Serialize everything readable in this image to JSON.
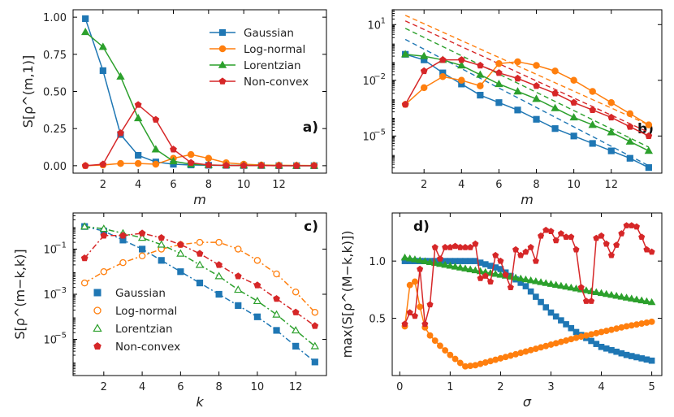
{
  "colors": {
    "gaussian": "#1f77b4",
    "lognormal": "#ff7f0e",
    "lorentzian": "#2ca02c",
    "nonconvex": "#d62728"
  },
  "chart_data": [
    {
      "id": "a",
      "panel_label": "a)",
      "type": "line",
      "yscale": "linear",
      "xlabel": "m",
      "ylabel": "S[ρ^(m,1)]",
      "xlim": [
        0.3,
        14.7
      ],
      "ylim": [
        -0.05,
        1.05
      ],
      "xticks": [
        2,
        4,
        6,
        8,
        10,
        12
      ],
      "yticks": [
        0,
        0.25,
        0.5,
        0.75,
        1.0
      ],
      "ytick_labels": [
        "0.00",
        "0.25",
        "0.50",
        "0.75",
        "1.00"
      ],
      "legend": [
        "Gaussian",
        "Log-normal",
        "Lorentzian",
        "Non-convex"
      ],
      "x": [
        1,
        2,
        3,
        4,
        5,
        6,
        7,
        8,
        9,
        10,
        11,
        12,
        13,
        14
      ],
      "series": [
        {
          "name": "Gaussian",
          "key": "gaussian",
          "marker": "square",
          "values": [
            0.99,
            0.64,
            0.21,
            0.07,
            0.025,
            0.01,
            0.005,
            0.003,
            0.002,
            0.001,
            0.001,
            0,
            0,
            0
          ]
        },
        {
          "name": "Log-normal",
          "key": "lognormal",
          "marker": "circle",
          "values": [
            0.0,
            0.005,
            0.015,
            0.015,
            0.01,
            0.05,
            0.075,
            0.05,
            0.02,
            0.01,
            0.005,
            0.003,
            0.002,
            0.001
          ]
        },
        {
          "name": "Lorentzian",
          "key": "lorentzian",
          "marker": "triangle",
          "values": [
            0.9,
            0.8,
            0.6,
            0.32,
            0.11,
            0.03,
            0.01,
            0.005,
            0.003,
            0.002,
            0.001,
            0.001,
            0,
            0
          ]
        },
        {
          "name": "Non-convex",
          "key": "nonconvex",
          "marker": "pentagon",
          "values": [
            0.0,
            0.01,
            0.22,
            0.41,
            0.31,
            0.11,
            0.02,
            0.005,
            0.002,
            0.001,
            0.001,
            0,
            0,
            0
          ]
        }
      ]
    },
    {
      "id": "b",
      "panel_label": "b)",
      "type": "line",
      "yscale": "log",
      "xlabel": "m",
      "ylabel": "",
      "xlim": [
        0.3,
        14.7
      ],
      "ylim_log10": [
        -7,
        1.8
      ],
      "xticks": [
        2,
        4,
        6,
        8,
        10,
        12
      ],
      "yticks_log10": [
        1,
        -2,
        -5
      ],
      "ytick_labels": [
        "10",
        "10",
        "10"
      ],
      "ytick_exponents": [
        "1",
        "−2",
        "−5"
      ],
      "x": [
        1,
        2,
        3,
        4,
        5,
        6,
        7,
        8,
        9,
        10,
        11,
        12,
        13,
        14
      ],
      "series": [
        {
          "name": "Gaussian",
          "key": "gaussian",
          "marker": "square",
          "log10_values": [
            -0.6,
            -0.9,
            -1.6,
            -2.2,
            -2.8,
            -3.2,
            -3.6,
            -4.1,
            -4.6,
            -5.0,
            -5.4,
            -5.8,
            -6.2,
            -6.7
          ]
        },
        {
          "name": "Log-normal",
          "key": "lognormal",
          "marker": "circle",
          "log10_values": [
            -3.3,
            -2.4,
            -1.8,
            -2.0,
            -2.3,
            -1.1,
            -1.0,
            -1.2,
            -1.5,
            -2.0,
            -2.6,
            -3.2,
            -3.8,
            -4.4
          ]
        },
        {
          "name": "Lorentzian",
          "key": "lorentzian",
          "marker": "triangle",
          "log10_values": [
            -0.6,
            -0.7,
            -0.9,
            -1.2,
            -1.7,
            -2.2,
            -2.6,
            -3.0,
            -3.5,
            -4.0,
            -4.4,
            -4.8,
            -5.3,
            -5.8
          ]
        },
        {
          "name": "Non-convex",
          "key": "nonconvex",
          "marker": "pentagon",
          "log10_values": [
            -3.3,
            -1.5,
            -0.9,
            -0.9,
            -1.2,
            -1.6,
            -1.9,
            -2.3,
            -2.7,
            -3.2,
            -3.6,
            -4.0,
            -4.5,
            -5.0
          ]
        }
      ],
      "asymptotes": [
        {
          "key": "gaussian",
          "log10_from": [
            1,
            0.2
          ],
          "log10_to": [
            14,
            -6.6
          ]
        },
        {
          "key": "lorentzian",
          "log10_from": [
            1,
            0.8
          ],
          "log10_to": [
            14,
            -5.6
          ]
        },
        {
          "key": "nonconvex",
          "log10_from": [
            1,
            1.2
          ],
          "log10_to": [
            14,
            -4.8
          ]
        },
        {
          "key": "lognormal",
          "log10_from": [
            1,
            1.5
          ],
          "log10_to": [
            14,
            -4.4
          ]
        }
      ]
    },
    {
      "id": "c",
      "panel_label": "c)",
      "type": "line",
      "yscale": "log",
      "line_style": "dash-dot",
      "xlabel": "k",
      "ylabel": "S[ρ^(m−k,k)]",
      "xlim": [
        0.4,
        13.6
      ],
      "ylim_log10": [
        -6.6,
        0.6
      ],
      "xticks": [
        2,
        4,
        6,
        8,
        10,
        12
      ],
      "yticks_log10": [
        -1,
        -3,
        -5
      ],
      "ytick_labels": [
        "10",
        "10",
        "10"
      ],
      "ytick_exponents": [
        "−1",
        "−3",
        "−5"
      ],
      "legend": [
        "Gaussian",
        "Log-normal",
        "Lorentzian",
        "Non-convex"
      ],
      "x": [
        1,
        2,
        3,
        4,
        5,
        6,
        7,
        8,
        9,
        10,
        11,
        12,
        13
      ],
      "series": [
        {
          "name": "Gaussian",
          "key": "gaussian",
          "marker": "square",
          "open": false,
          "log10_values": [
            0,
            -0.2,
            -0.6,
            -1.0,
            -1.5,
            -2.0,
            -2.5,
            -3.0,
            -3.5,
            -4.0,
            -4.6,
            -5.3,
            -6.0
          ]
        },
        {
          "name": "Log-normal",
          "key": "lognormal",
          "marker": "circle",
          "open": true,
          "log10_values": [
            -2.5,
            -2.0,
            -1.6,
            -1.3,
            -1.0,
            -0.8,
            -0.7,
            -0.7,
            -1.0,
            -1.5,
            -2.1,
            -2.9,
            -3.8
          ]
        },
        {
          "name": "Lorentzian",
          "key": "lorentzian",
          "marker": "triangle",
          "open": true,
          "log10_values": [
            0,
            -0.1,
            -0.3,
            -0.5,
            -0.8,
            -1.2,
            -1.7,
            -2.2,
            -2.8,
            -3.3,
            -3.9,
            -4.6,
            -5.3
          ]
        },
        {
          "name": "Non-convex",
          "key": "nonconvex",
          "marker": "pentagon",
          "open": false,
          "log10_values": [
            -1.4,
            -0.4,
            -0.4,
            -0.3,
            -0.5,
            -0.8,
            -1.2,
            -1.7,
            -2.2,
            -2.6,
            -3.2,
            -3.8,
            -4.4
          ]
        }
      ]
    },
    {
      "id": "d",
      "panel_label": "d)",
      "type": "line",
      "yscale": "linear",
      "xlabel": "σ",
      "ylabel": "max(S[ρ^(M−k,k)])",
      "xlim": [
        -0.15,
        5.2
      ],
      "ylim": [
        0.0,
        1.42
      ],
      "xticks": [
        0,
        1,
        2,
        3,
        4,
        5
      ],
      "yticks": [
        0.5,
        1.0
      ],
      "ytick_labels": [
        "0.5",
        "1.0"
      ],
      "series": [
        {
          "name": "Gaussian",
          "key": "gaussian",
          "marker": "square",
          "x_range": [
            0.1,
            5.0
          ],
          "count": 50,
          "anchors_x": [
            0.1,
            1.5,
            2.0,
            2.5,
            3.0,
            3.5,
            4.0,
            4.5,
            5.0
          ],
          "anchors_y": [
            1.0,
            1.0,
            0.93,
            0.78,
            0.55,
            0.38,
            0.25,
            0.18,
            0.13
          ]
        },
        {
          "name": "Log-normal",
          "key": "lognormal",
          "marker": "circle",
          "x_range": [
            0.1,
            5.0
          ],
          "count": 50,
          "anchors_x": [
            0.1,
            0.2,
            0.3,
            0.4,
            0.5,
            0.6,
            0.8,
            1.0,
            1.2,
            1.3,
            1.5,
            2.0,
            2.5,
            3.0,
            3.5,
            4.0,
            4.5,
            5.0
          ],
          "anchors_y": [
            0.43,
            0.79,
            0.82,
            0.6,
            0.42,
            0.35,
            0.26,
            0.18,
            0.11,
            0.08,
            0.09,
            0.15,
            0.21,
            0.27,
            0.33,
            0.38,
            0.43,
            0.47
          ]
        },
        {
          "name": "Lorentzian",
          "key": "lorentzian",
          "marker": "triangle",
          "x_range": [
            0.1,
            5.0
          ],
          "count": 50,
          "anchors_x": [
            0.1,
            5.0
          ],
          "anchors_y": [
            1.03,
            0.64
          ]
        },
        {
          "name": "Non-convex",
          "key": "nonconvex",
          "marker": "pentagon",
          "x": [
            0.1,
            0.2,
            0.3,
            0.4,
            0.5,
            0.6,
            0.7,
            0.8,
            0.9,
            1.0,
            1.1,
            1.2,
            1.3,
            1.4,
            1.5,
            1.6,
            1.7,
            1.8,
            1.9,
            2.0,
            2.1,
            2.2,
            2.3,
            2.4,
            2.5,
            2.6,
            2.7,
            2.8,
            2.9,
            3.0,
            3.1,
            3.2,
            3.3,
            3.4,
            3.5,
            3.6,
            3.7,
            3.8,
            3.9,
            4.0,
            4.1,
            4.2,
            4.3,
            4.4,
            4.5,
            4.6,
            4.7,
            4.8,
            4.9,
            5.0
          ],
          "values": [
            0.45,
            0.55,
            0.52,
            0.93,
            0.45,
            0.62,
            1.12,
            1.02,
            1.12,
            1.12,
            1.13,
            1.12,
            1.12,
            1.12,
            1.15,
            0.85,
            0.87,
            0.82,
            1.05,
            1.0,
            0.88,
            0.77,
            1.1,
            1.05,
            1.08,
            1.12,
            1.0,
            1.22,
            1.27,
            1.26,
            1.18,
            1.24,
            1.21,
            1.21,
            1.1,
            0.77,
            0.65,
            0.65,
            1.2,
            1.22,
            1.15,
            1.05,
            1.14,
            1.24,
            1.31,
            1.31,
            1.3,
            1.21,
            1.1,
            1.08
          ]
        }
      ]
    }
  ]
}
